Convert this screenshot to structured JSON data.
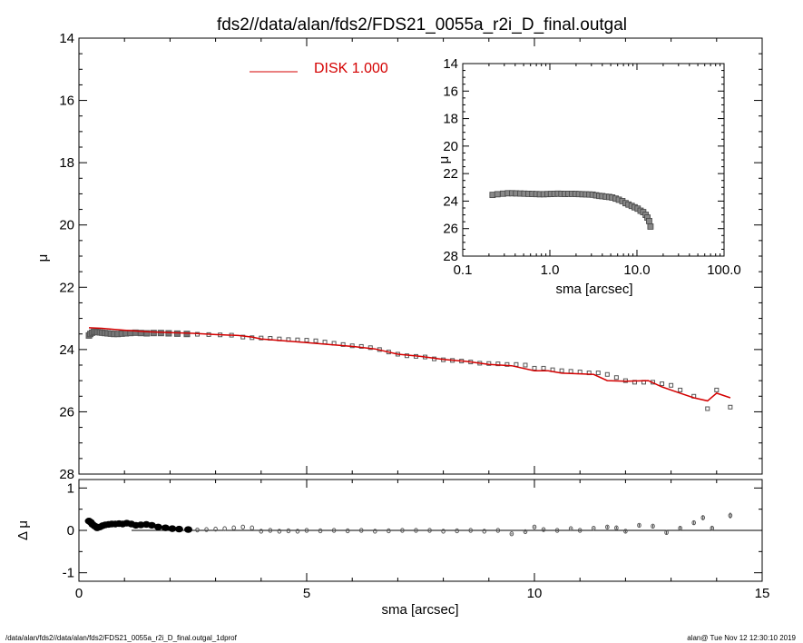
{
  "chart_data": [
    {
      "type": "scatter",
      "panel": "main",
      "title": "fds2//data/alan/fds2/FDS21_0055a_r2i_D_final.outgal",
      "xlabel": "",
      "ylabel": "μ",
      "xlim": [
        0,
        15
      ],
      "ylim": [
        28,
        14
      ],
      "x_ticks": [
        "0",
        "5",
        "10",
        "15"
      ],
      "y_ticks": [
        "14",
        "16",
        "18",
        "20",
        "22",
        "24",
        "26",
        "28"
      ],
      "legend": {
        "label": "DISK  1.000",
        "color": "#d40000",
        "placement": "top-center"
      },
      "series": [
        {
          "marker": "open-square",
          "color": "#555555",
          "x": [
            0.22,
            0.25,
            0.29,
            0.33,
            0.37,
            0.41,
            0.46,
            0.51,
            0.57,
            0.63,
            0.7,
            0.77,
            0.85,
            0.94,
            1.03,
            1.13,
            1.24,
            1.36,
            1.49,
            1.64,
            1.8,
            1.97,
            2.16,
            2.37,
            2.6,
            2.85,
            3.1,
            3.35,
            3.6,
            3.8,
            4.0,
            4.2,
            4.4,
            4.6,
            4.8,
            5.0,
            5.2,
            5.4,
            5.6,
            5.8,
            6.0,
            6.2,
            6.4,
            6.6,
            6.8,
            7.0,
            7.2,
            7.4,
            7.6,
            7.8,
            8.0,
            8.2,
            8.4,
            8.6,
            8.8,
            9.0,
            9.2,
            9.4,
            9.6,
            9.8,
            10.0,
            10.2,
            10.4,
            10.6,
            10.8,
            11.0,
            11.2,
            11.4,
            11.6,
            11.8,
            12.0,
            12.2,
            12.4,
            12.6,
            12.8,
            13.0,
            13.2,
            13.5,
            13.8,
            14.0,
            14.3
          ],
          "y": [
            23.55,
            23.5,
            23.46,
            23.43,
            23.43,
            23.44,
            23.45,
            23.46,
            23.47,
            23.48,
            23.49,
            23.5,
            23.5,
            23.49,
            23.48,
            23.47,
            23.46,
            23.47,
            23.48,
            23.47,
            23.47,
            23.48,
            23.49,
            23.5,
            23.51,
            23.52,
            23.53,
            23.54,
            23.6,
            23.62,
            23.63,
            23.64,
            23.66,
            23.68,
            23.69,
            23.7,
            23.72,
            23.76,
            23.8,
            23.84,
            23.88,
            23.9,
            23.94,
            24.0,
            24.08,
            24.15,
            24.2,
            24.22,
            24.24,
            24.3,
            24.33,
            24.35,
            24.37,
            24.4,
            24.44,
            24.45,
            24.46,
            24.48,
            24.48,
            24.5,
            24.6,
            24.6,
            24.65,
            24.68,
            24.7,
            24.72,
            24.75,
            24.75,
            24.8,
            24.9,
            25.0,
            25.05,
            25.05,
            25.05,
            25.1,
            25.15,
            25.3,
            25.5,
            25.9,
            25.3,
            25.85
          ]
        },
        {
          "marker": "line",
          "name": "DISK",
          "color": "#d40000",
          "x": [
            0.22,
            0.5,
            1.0,
            1.5,
            2.0,
            2.5,
            3.0,
            3.5,
            3.8,
            4.0,
            4.5,
            5.0,
            5.5,
            6.0,
            6.5,
            7.0,
            7.5,
            8.0,
            8.5,
            9.0,
            9.5,
            10.0,
            10.3,
            10.6,
            11.0,
            11.3,
            11.6,
            12.0,
            12.5,
            12.8,
            13.2,
            13.5,
            13.8,
            14.0,
            14.3
          ],
          "y": [
            23.3,
            23.32,
            23.38,
            23.43,
            23.46,
            23.48,
            23.52,
            23.55,
            23.6,
            23.66,
            23.72,
            23.78,
            23.84,
            23.9,
            23.98,
            24.15,
            24.22,
            24.32,
            24.38,
            24.48,
            24.52,
            24.68,
            24.68,
            24.76,
            24.78,
            24.8,
            25.0,
            25.02,
            25.0,
            25.2,
            25.4,
            25.55,
            25.65,
            25.4,
            25.55
          ]
        }
      ]
    },
    {
      "type": "scatter",
      "panel": "residual",
      "xlabel": "sma [arcsec]",
      "ylabel": "Δ μ",
      "xlim": [
        0,
        15
      ],
      "ylim": [
        -1.2,
        1.2
      ],
      "x_ticks": [
        "0",
        "5",
        "10",
        "15"
      ],
      "y_ticks": [
        "1",
        "0",
        "-1"
      ],
      "series": [
        {
          "marker": "open-circle",
          "color": "#555555",
          "x": [
            0.22,
            0.26,
            0.3,
            0.35,
            0.4,
            0.46,
            0.52,
            0.58,
            0.65,
            0.72,
            0.8,
            0.88,
            0.96,
            1.05,
            1.15,
            1.25,
            1.36,
            1.48,
            1.6,
            1.74,
            1.9,
            2.05,
            2.2,
            2.4,
            2.6,
            2.8,
            3.0,
            3.2,
            3.4,
            3.6,
            3.8,
            4.0,
            4.2,
            4.4,
            4.6,
            4.8,
            5.0,
            5.3,
            5.6,
            5.9,
            6.2,
            6.5,
            6.8,
            7.1,
            7.4,
            7.7,
            8.0,
            8.3,
            8.6,
            8.9,
            9.2,
            9.5,
            9.8,
            10.0,
            10.2,
            10.5,
            10.8,
            11.0,
            11.3,
            11.6,
            11.8,
            12.0,
            12.3,
            12.6,
            12.9,
            13.2,
            13.5,
            13.7,
            13.9,
            14.3
          ],
          "y": [
            0.22,
            0.19,
            0.14,
            0.1,
            0.06,
            0.08,
            0.11,
            0.13,
            0.14,
            0.15,
            0.15,
            0.16,
            0.15,
            0.17,
            0.15,
            0.12,
            0.13,
            0.14,
            0.12,
            0.08,
            0.06,
            0.04,
            0.03,
            0.02,
            0.01,
            0.02,
            0.03,
            0.04,
            0.06,
            0.08,
            0.06,
            -0.02,
            0.0,
            -0.02,
            -0.01,
            -0.02,
            0.0,
            -0.01,
            0.0,
            -0.01,
            0.0,
            -0.02,
            -0.01,
            0.0,
            0.0,
            0.0,
            -0.02,
            -0.01,
            0.0,
            -0.02,
            0.0,
            -0.08,
            -0.03,
            0.08,
            0.02,
            0.0,
            0.04,
            0.0,
            0.05,
            0.08,
            0.06,
            -0.02,
            0.12,
            0.1,
            -0.05,
            0.05,
            0.18,
            0.3,
            0.05,
            0.35
          ],
          "error": [
            0.01,
            0.01,
            0.01,
            0.01,
            0.01,
            0.01,
            0.01,
            0.01,
            0.01,
            0.01,
            0.01,
            0.01,
            0.01,
            0.01,
            0.01,
            0.01,
            0.01,
            0.01,
            0.01,
            0.01,
            0.01,
            0.01,
            0.01,
            0.01,
            0.01,
            0.01,
            0.01,
            0.01,
            0.01,
            0.01,
            0.01,
            0.01,
            0.01,
            0.01,
            0.01,
            0.01,
            0.01,
            0.01,
            0.01,
            0.01,
            0.01,
            0.01,
            0.01,
            0.01,
            0.01,
            0.01,
            0.01,
            0.01,
            0.01,
            0.01,
            0.01,
            0.02,
            0.02,
            0.02,
            0.02,
            0.02,
            0.02,
            0.02,
            0.02,
            0.03,
            0.03,
            0.03,
            0.03,
            0.03,
            0.04,
            0.04,
            0.05,
            0.06,
            0.06,
            0.07
          ]
        }
      ]
    },
    {
      "type": "scatter",
      "panel": "inset",
      "xlabel": "sma [arcsec]",
      "ylabel": "μ",
      "xscale": "log",
      "xlim": [
        0.1,
        100
      ],
      "ylim": [
        28,
        14
      ],
      "x_ticks": [
        "0.1",
        "1.0",
        "10.0",
        "100.0"
      ],
      "y_ticks": [
        "14",
        "16",
        "18",
        "20",
        "22",
        "24",
        "26",
        "28"
      ],
      "series": [
        {
          "marker": "open-square",
          "color": "#555555",
          "x": [
            0.22,
            0.25,
            0.29,
            0.33,
            0.37,
            0.41,
            0.46,
            0.51,
            0.57,
            0.63,
            0.7,
            0.77,
            0.85,
            0.94,
            1.03,
            1.13,
            1.24,
            1.36,
            1.49,
            1.64,
            1.8,
            1.97,
            2.16,
            2.37,
            2.6,
            2.85,
            3.1,
            3.4,
            3.7,
            4.0,
            4.4,
            4.8,
            5.2,
            5.7,
            6.2,
            6.8,
            7.4,
            8.0,
            8.7,
            9.4,
            10.2,
            11.0,
            11.8,
            12.6,
            13.2,
            13.8,
            14.3
          ],
          "y": [
            23.55,
            23.5,
            23.46,
            23.43,
            23.43,
            23.44,
            23.45,
            23.46,
            23.47,
            23.48,
            23.49,
            23.5,
            23.5,
            23.49,
            23.48,
            23.47,
            23.46,
            23.47,
            23.48,
            23.47,
            23.47,
            23.48,
            23.49,
            23.5,
            23.51,
            23.52,
            23.53,
            23.58,
            23.62,
            23.64,
            23.68,
            23.7,
            23.74,
            23.82,
            23.9,
            24.0,
            24.15,
            24.25,
            24.35,
            24.45,
            24.55,
            24.7,
            24.8,
            25.0,
            25.2,
            25.45,
            25.85
          ]
        }
      ]
    }
  ],
  "footer": {
    "left": "/data/alan/fds2//data/alan/fds2/FDS21_0055a_r2i_D_final.outgal_1dprof",
    "right": "alan@  Tue Nov 12 12:30:10 2019"
  }
}
